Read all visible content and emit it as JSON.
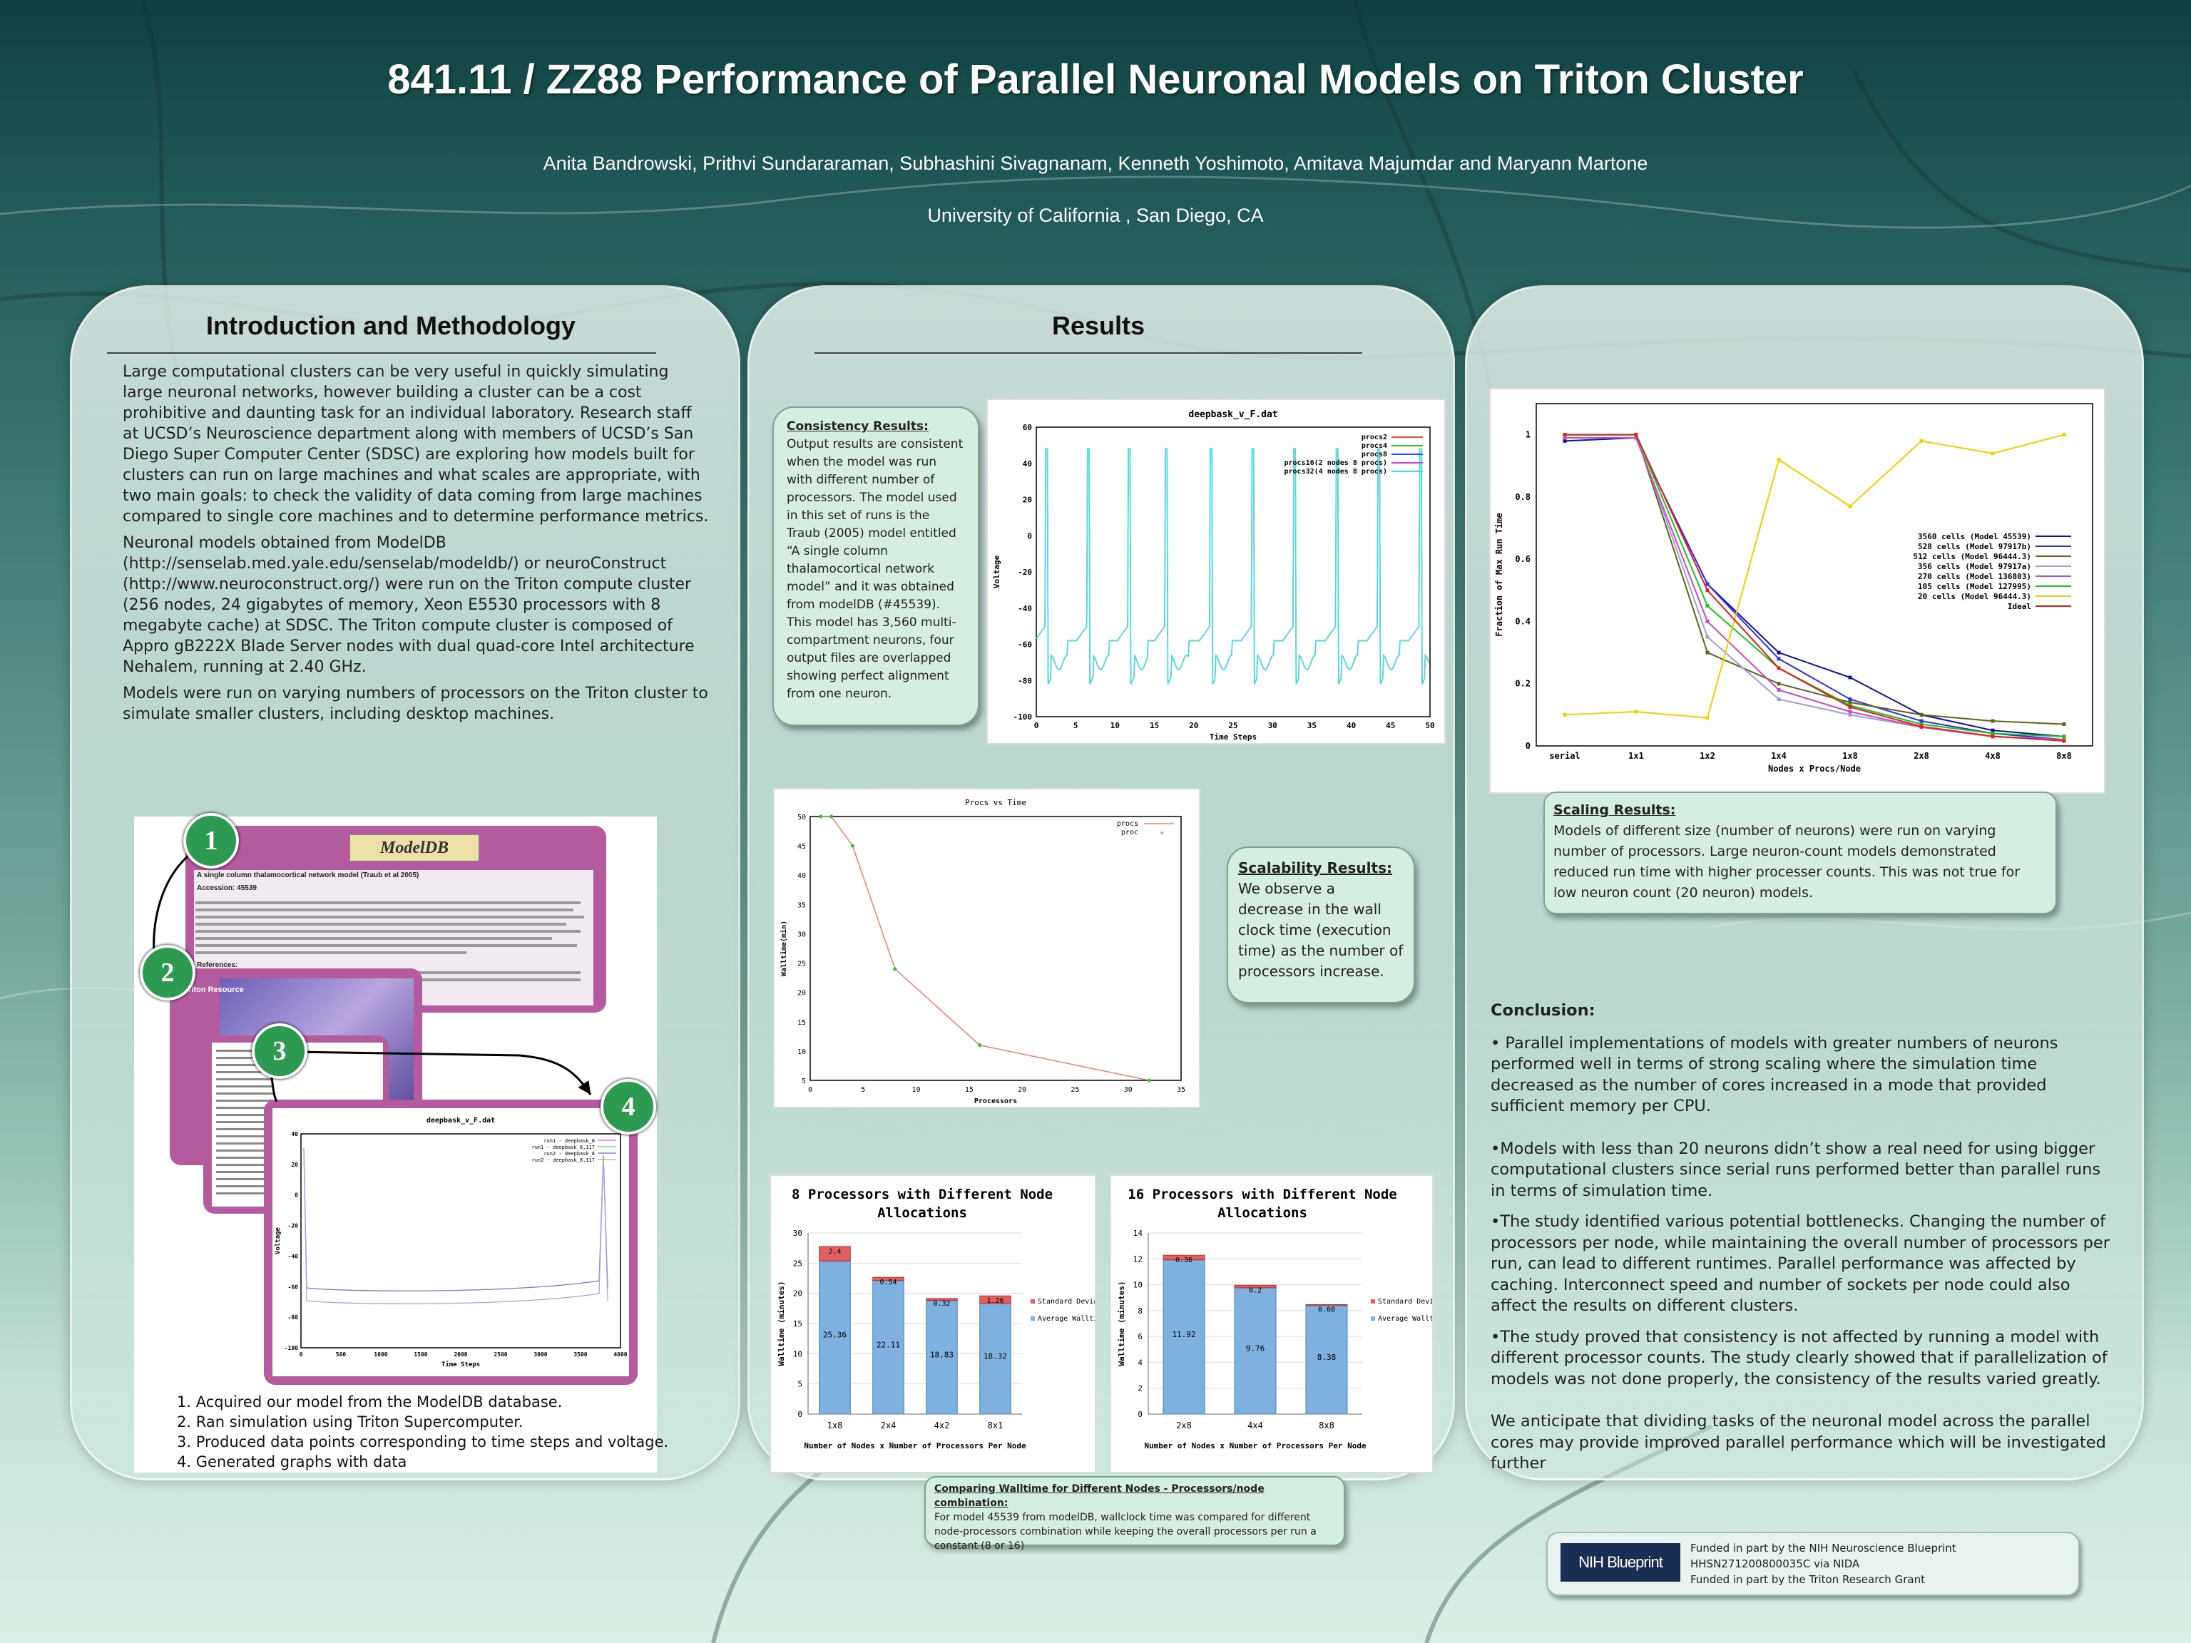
{
  "header": {
    "title": "841.11 / ZZ88 Performance of Parallel Neuronal Models on Triton Cluster",
    "authors": "Anita Bandrowski, Prithvi Sundararaman, Subhashini Sivagnanam, Kenneth Yoshimoto, Amitava Majumdar and Maryann Martone",
    "affiliation": "University of California , San Diego, CA"
  },
  "intro": {
    "title": "Introduction and Methodology",
    "p1": "Large computational clusters can be very useful in quickly simulating large neuronal networks, however building a cluster can be a cost prohibitive and daunting task for an individual laboratory. Research staff at UCSD’s Neuroscience department along  with members of UCSD’s San Diego Super Computer Center (SDSC) are exploring how models built for clusters can run on large machines and what scales are appropriate, with two main goals: to check the validity of data coming from large machines compared to single core machines and to determine performance metrics.",
    "p2": "Neuronal models obtained from ModelDB (http://senselab.med.yale.edu/senselab/modeldb/) or neuroConstruct (http://www.neuroconstruct.org/) were run on the Triton compute cluster (256 nodes, 24 gigabytes of memory, Xeon E5530 processors with 8 megabyte cache) at SDSC. The Triton compute cluster is composed of Appro gB222X Blade Server nodes with dual quad-core Intel architecture Nehalem, running at 2.40 GHz.",
    "p3": "Models were run on varying numbers of processors on the Triton cluster to simulate smaller clusters, including desktop machines.",
    "figure": {
      "modeldb_logo": "ModelDB",
      "modeldb_heading": "A single column thalamocortical network model (Traub et al 2005)",
      "modeldb_accession": "Accession: 45539",
      "modeldb_refs": "References:",
      "triton_label": "Triton Resource",
      "plot_title": "deepbask_v_F.dat",
      "plot_xlabel": "Time Steps",
      "plot_ylabel": "Voltage",
      "legend": [
        "run1 - deepbask_8",
        "run1 - deepbask_8,117",
        "run2 - deepbask_8",
        "run2 - deepbask_8,117"
      ],
      "badges": [
        "1",
        "2",
        "3",
        "4"
      ]
    },
    "steps": [
      "1. Acquired our model from the ModelDB database.",
      "2. Ran simulation using Triton Supercomputer.",
      "3. Produced data points corresponding to time steps and voltage.",
      "4. Generated graphs with data"
    ]
  },
  "results": {
    "title": "Results",
    "consistency": {
      "heading": "Consistency  Results:",
      "text": "Output results are consistent when the model was run with different number of processors. The model used in this set of runs is the Traub (2005) model entitled “A single column thalamocortical network model” and it was obtained from modelDB (#45539). This model has 3,560 multi-compartment neurons, four output files are overlapped showing perfect alignment from one neuron."
    },
    "scalability": {
      "heading": "Scalability Results:",
      "text": "We observe  a decrease in the wall clock time (execution time) as the number of processors increase."
    },
    "comparing": {
      "heading": "Comparing Walltime  for Different Nodes - Processors/node combination:",
      "text": "For model 45539 from modelDB, wallclock time was compared for different node-processors combination while keeping  the overall processors per run a constant (8 or 16)"
    }
  },
  "conclusion": {
    "scaling": {
      "heading": "Scaling Results:",
      "text": "Models of different size (number of neurons) were run on varying number of processors.  Large neuron-count models demonstrated reduced run time with higher processer counts.  This was not true for low neuron count (20 neuron) models."
    },
    "heading": "Conclusion:",
    "b1": "• Parallel implementations of models with greater numbers of neurons performed well in terms of strong scaling where the simulation time decreased as the number of cores increased in a mode that provided sufficient memory per CPU.",
    "b2": "•Models with less than 20 neurons didn’t show a real need for using bigger computational clusters since serial runs performed better than parallel runs in terms of simulation time.",
    "b3": "•The study identified various potential bottlenecks. Changing the number of processors per node, while maintaining the overall number of processors per run, can lead to different runtimes. Parallel performance was affected by caching. Interconnect speed and number of sockets per node could also affect the results on different clusters.",
    "b4": "•The study proved that consistency is not affected by running a model with different processor counts. The study clearly showed that if parallelization of models was not done properly, the consistency of the results varied greatly.",
    "b5": "We anticipate that dividing tasks of the neuronal model across the parallel cores may provide improved parallel performance which will be investigated further"
  },
  "funding": {
    "logo": "NIH Blueprint",
    "line1": "Funded  in part by the NIH Neuroscience Blueprint",
    "line2": "HHSN271200800035C  via NIDA",
    "line3": "Funded  in part by the Triton Research Grant"
  },
  "chart_data": [
    {
      "type": "line",
      "title": "deepbask_v_F.dat",
      "xlabel": "Time Steps",
      "ylabel": "Voltage",
      "xlim": [
        0,
        50
      ],
      "ylim": [
        -100,
        60
      ],
      "xticks": [
        "0",
        "5",
        "10",
        "15",
        "20",
        "25",
        "30",
        "35",
        "40",
        "45",
        "50"
      ],
      "yticks": [
        "-100",
        "-80",
        "-60",
        "-40",
        "-20",
        "0",
        "20",
        "40",
        "60"
      ],
      "series": [
        {
          "name": "procs2"
        },
        {
          "name": "procs4"
        },
        {
          "name": "procs8"
        },
        {
          "name": "procs16(2 nodes 8 procs)"
        },
        {
          "name": "procs32(4 nodes 8 procs)"
        }
      ],
      "spike_times": [
        1.3,
        6.6,
        11.8,
        16.5,
        22.2,
        27.5,
        32.8,
        38.2,
        43.5,
        48.8
      ],
      "spike_peak": 48,
      "trough": -84,
      "baseline": -58,
      "colors": [
        "#ff4040",
        "#30c030",
        "#3050ff",
        "#d040d0",
        "#40e0e0"
      ]
    },
    {
      "type": "line",
      "title": "Procs vs Time",
      "xlabel": "Processors",
      "ylabel": "Walltime(min)",
      "xlim": [
        0,
        35
      ],
      "ylim": [
        5,
        50
      ],
      "xticks": [
        "0",
        "5",
        "10",
        "15",
        "20",
        "25",
        "30",
        "35"
      ],
      "yticks": [
        "5",
        "10",
        "15",
        "20",
        "25",
        "30",
        "35",
        "40",
        "45",
        "50"
      ],
      "series": [
        {
          "name": "procs",
          "x": [
            1,
            2,
            4,
            8,
            16,
            32
          ],
          "y": [
            50,
            50,
            45,
            24,
            11,
            5
          ],
          "color": "#f08070"
        },
        {
          "name": "proc",
          "color": "#30c030"
        }
      ]
    },
    {
      "type": "bar",
      "title": "8 Processors with Different Node Allocations",
      "xlabel": "Number of Nodes x Number of Processors Per Node",
      "ylabel": "Walltime (minutes)",
      "categories": [
        "1x8",
        "2x4",
        "4x2",
        "8x1"
      ],
      "ylim": [
        0,
        30
      ],
      "yticks": [
        "0",
        "5",
        "10",
        "15",
        "20",
        "25",
        "30"
      ],
      "series": [
        {
          "name": "Average Walltime",
          "values": [
            25.36,
            22.11,
            18.83,
            18.32
          ]
        },
        {
          "name": "Standard Deviation",
          "values": [
            2.4,
            0.54,
            0.32,
            1.26
          ]
        }
      ],
      "value_labels": [
        "25.36",
        "22.11",
        "18.83",
        "18.32"
      ],
      "sd_labels": [
        "2.4",
        "0.54",
        "0.32",
        "1.26"
      ]
    },
    {
      "type": "bar",
      "title": "16 Processors with Different Node Allocations",
      "xlabel": "Number of Nodes x Number of Processors Per Node",
      "ylabel": "Walltime (minutes)",
      "categories": [
        "2x8",
        "4x4",
        "8x8"
      ],
      "ylim": [
        0,
        14
      ],
      "yticks": [
        "0",
        "2",
        "4",
        "6",
        "8",
        "10",
        "12",
        "14"
      ],
      "series": [
        {
          "name": "Average Walltime",
          "values": [
            11.92,
            9.76,
            8.38
          ]
        },
        {
          "name": "Standard Deviation",
          "values": [
            0.36,
            0.2,
            0.08
          ]
        }
      ],
      "value_labels": [
        "11.92",
        "9.76",
        "8.38"
      ],
      "sd_labels": [
        "0.36",
        "0.2",
        "0.08"
      ]
    },
    {
      "type": "line",
      "title": "",
      "xlabel": "Nodes x Procs/Node",
      "ylabel": "Fraction of Max Run Time",
      "categories": [
        "serial",
        "1x1",
        "1x2",
        "1x4",
        "1x8",
        "2x8",
        "4x8",
        "8x8"
      ],
      "ylim": [
        0,
        1.1
      ],
      "yticks": [
        "0",
        "0.2",
        "0.4",
        "0.6",
        "0.8",
        "1"
      ],
      "series": [
        {
          "name": "3560 cells (Model 45539)",
          "color": "#1010a0",
          "values": [
            0.98,
            0.99,
            0.52,
            0.3,
            0.22,
            0.1,
            0.05,
            0.03
          ]
        },
        {
          "name": "528 cells (Model 97917b)",
          "color": "#3030e0",
          "values": [
            0.99,
            0.99,
            0.52,
            0.28,
            0.15,
            0.08,
            0.04,
            0.02
          ]
        },
        {
          "name": "512 cells (Model 96444.3)",
          "color": "#606020",
          "values": [
            1,
            1,
            0.3,
            0.2,
            0.14,
            0.1,
            0.08,
            0.07
          ]
        },
        {
          "name": "356 cells (Model 97917a)",
          "color": "#a0a0d0",
          "values": [
            1,
            1,
            0.35,
            0.15,
            0.1,
            0.06,
            0.03,
            0.02
          ]
        },
        {
          "name": "270 cells (Model 136803)",
          "color": "#c050c0",
          "values": [
            0.99,
            0.99,
            0.4,
            0.18,
            0.11,
            0.06,
            0.03,
            0.02
          ]
        },
        {
          "name": "105 cells (Model 127995)",
          "color": "#20c020",
          "values": [
            1,
            1,
            0.45,
            0.25,
            0.13,
            0.07,
            0.04,
            0.03
          ]
        },
        {
          "name": "20 cells (Model 96444.3)",
          "color": "#f0d000",
          "values": [
            0.1,
            0.11,
            0.09,
            0.92,
            0.77,
            0.98,
            0.94,
            1
          ]
        },
        {
          "name": "Ideal",
          "color": "#e02020",
          "values": [
            1,
            1,
            0.5,
            0.25,
            0.125,
            0.0625,
            0.031,
            0.016
          ]
        }
      ]
    }
  ]
}
